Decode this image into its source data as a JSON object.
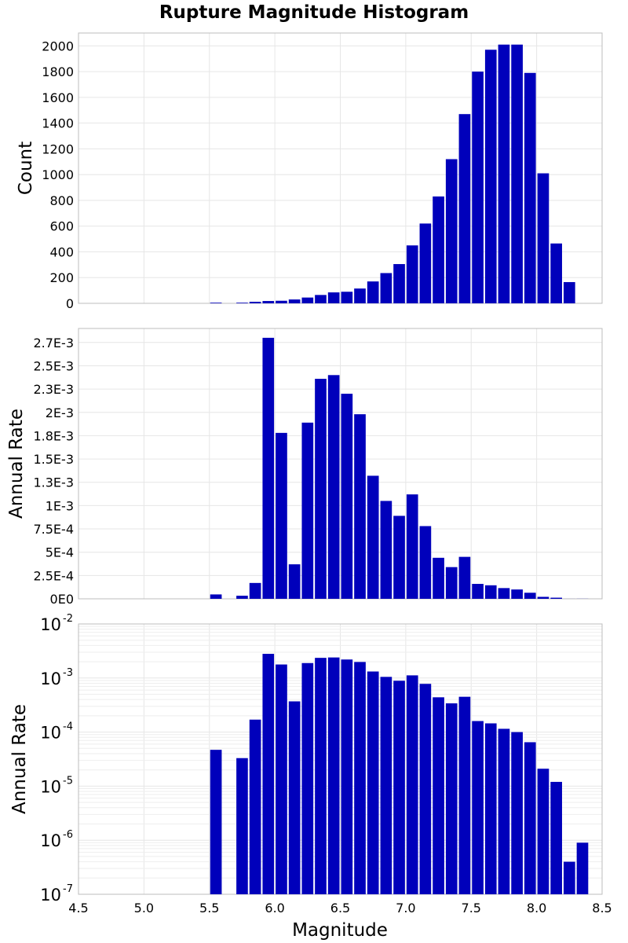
{
  "chart_data": {
    "title": "Rupture Magnitude Histogram",
    "xlabel": "Magnitude",
    "x_ticks": [
      "4.5",
      "5.0",
      "5.5",
      "6.0",
      "6.5",
      "7.0",
      "7.5",
      "8.0",
      "8.5"
    ],
    "xlim": [
      4.5,
      8.5
    ],
    "bin_width": 0.1,
    "bar_color": "#0000bb",
    "panels": [
      {
        "type": "bar",
        "ylabel": "Count",
        "ylim": [
          0,
          2100
        ],
        "y_ticks": [
          {
            "value": 0,
            "label": "0"
          },
          {
            "value": 200,
            "label": "200"
          },
          {
            "value": 400,
            "label": "400"
          },
          {
            "value": 600,
            "label": "600"
          },
          {
            "value": 800,
            "label": "800"
          },
          {
            "value": 1000,
            "label": "1000"
          },
          {
            "value": 1200,
            "label": "1200"
          },
          {
            "value": 1400,
            "label": "1400"
          },
          {
            "value": 1600,
            "label": "1600"
          },
          {
            "value": 1800,
            "label": "1800"
          },
          {
            "value": 2000,
            "label": "2000"
          }
        ],
        "x": [
          5.55,
          5.75,
          5.85,
          5.95,
          6.05,
          6.15,
          6.25,
          6.35,
          6.45,
          6.55,
          6.65,
          6.75,
          6.85,
          6.95,
          7.05,
          7.15,
          7.25,
          7.35,
          7.45,
          7.55,
          7.65,
          7.75,
          7.85,
          7.95,
          8.05,
          8.15,
          8.25
        ],
        "values": [
          5,
          5,
          12,
          18,
          20,
          30,
          45,
          65,
          85,
          90,
          115,
          170,
          235,
          305,
          450,
          620,
          830,
          1120,
          1470,
          1800,
          1970,
          2010,
          2010,
          1790,
          1010,
          465,
          165
        ]
      },
      {
        "type": "bar",
        "ylabel": "Annual Rate",
        "ylim": [
          0,
          0.0029
        ],
        "y_ticks": [
          {
            "value": 0,
            "label": "0E0"
          },
          {
            "value": 0.00025,
            "label": "2.5E-4"
          },
          {
            "value": 0.0005,
            "label": "5E-4"
          },
          {
            "value": 0.00075,
            "label": "7.5E-4"
          },
          {
            "value": 0.001,
            "label": "1E-3"
          },
          {
            "value": 0.00125,
            "label": "1.3E-3"
          },
          {
            "value": 0.0015,
            "label": "1.5E-3"
          },
          {
            "value": 0.00175,
            "label": "1.8E-3"
          },
          {
            "value": 0.002,
            "label": "2E-3"
          },
          {
            "value": 0.00225,
            "label": "2.3E-3"
          },
          {
            "value": 0.0025,
            "label": "2.5E-3"
          },
          {
            "value": 0.00275,
            "label": "2.7E-3"
          }
        ],
        "x": [
          5.55,
          5.75,
          5.85,
          5.95,
          6.05,
          6.15,
          6.25,
          6.35,
          6.45,
          6.55,
          6.65,
          6.75,
          6.85,
          6.95,
          7.05,
          7.15,
          7.25,
          7.35,
          7.45,
          7.55,
          7.65,
          7.75,
          7.85,
          7.95,
          8.05,
          8.15,
          8.25,
          8.35
        ],
        "values": [
          4.7e-05,
          3.3e-05,
          0.00017,
          0.0028,
          0.00178,
          0.00037,
          0.00189,
          0.00236,
          0.0024,
          0.0022,
          0.00198,
          0.00132,
          0.00105,
          0.00089,
          0.00112,
          0.00078,
          0.00044,
          0.00034,
          0.00045,
          0.00016,
          0.000145,
          0.000115,
          0.0001,
          6.5e-05,
          2.1e-05,
          1.2e-05,
          4e-07,
          9e-07
        ]
      },
      {
        "type": "bar",
        "ylabel": "Annual Rate",
        "y_scale": "log",
        "ylim": [
          1e-07,
          0.01
        ],
        "y_ticks": [
          {
            "value": 1e-07,
            "base": "10",
            "exp": "-7"
          },
          {
            "value": 1e-06,
            "base": "10",
            "exp": "-6"
          },
          {
            "value": 1e-05,
            "base": "10",
            "exp": "-5"
          },
          {
            "value": 0.0001,
            "base": "10",
            "exp": "-4"
          },
          {
            "value": 0.001,
            "base": "10",
            "exp": "-3"
          },
          {
            "value": 0.01,
            "base": "10",
            "exp": "-2"
          }
        ],
        "x": [
          5.55,
          5.75,
          5.85,
          5.95,
          6.05,
          6.15,
          6.25,
          6.35,
          6.45,
          6.55,
          6.65,
          6.75,
          6.85,
          6.95,
          7.05,
          7.15,
          7.25,
          7.35,
          7.45,
          7.55,
          7.65,
          7.75,
          7.85,
          7.95,
          8.05,
          8.15,
          8.25,
          8.35
        ],
        "values": [
          4.7e-05,
          3.3e-05,
          0.00017,
          0.0028,
          0.00178,
          0.00037,
          0.00189,
          0.00236,
          0.0024,
          0.0022,
          0.00198,
          0.00132,
          0.00105,
          0.00089,
          0.00112,
          0.00078,
          0.00044,
          0.00034,
          0.00045,
          0.00016,
          0.000145,
          0.000115,
          0.0001,
          6.5e-05,
          2.1e-05,
          1.2e-05,
          4e-07,
          9e-07
        ]
      }
    ]
  }
}
